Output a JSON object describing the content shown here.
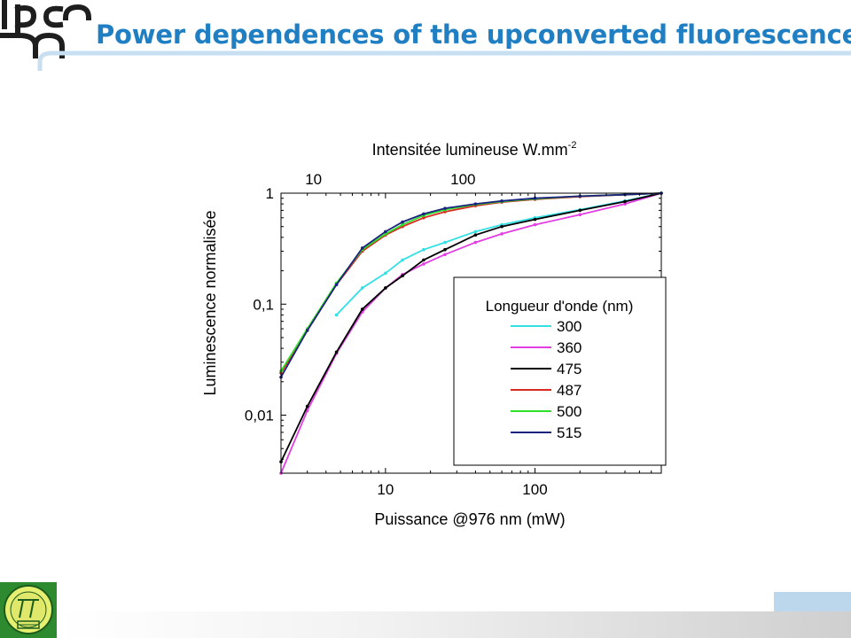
{
  "header": {
    "title": "Power dependences of the upconverted fluorescences"
  },
  "icons": {
    "logo": "lpcml-logo-icon",
    "seal": "dpc10-seal-icon"
  },
  "colors": {
    "title": "#1f7fc2",
    "accent": "#bcd7ec"
  },
  "chart_data": {
    "type": "line",
    "xscale": "log",
    "yscale": "log",
    "xlabel": "Puissance @976 nm (mW)",
    "ylabel": "Luminescence normalisée",
    "xlim": [
      2,
      700
    ],
    "ylim": [
      0.003,
      1
    ],
    "x_tick_labels": [
      "10",
      "100"
    ],
    "y_tick_labels": [
      "0,01",
      "0,1",
      "1"
    ],
    "top_axis": {
      "label": "Intensitée lumineuse W.mm",
      "label_sup": "-2",
      "tick_labels": [
        "10",
        "100"
      ]
    },
    "legend": {
      "title": "Longueur d'onde (nm)",
      "placement": "right"
    },
    "series": [
      {
        "name": "300",
        "color": "#33e0e6",
        "x": [
          4.7,
          7,
          10,
          13,
          18,
          25,
          40,
          60,
          100,
          200,
          400,
          700
        ],
        "y": [
          0.08,
          0.14,
          0.19,
          0.25,
          0.31,
          0.36,
          0.45,
          0.52,
          0.6,
          0.71,
          0.85,
          1
        ]
      },
      {
        "name": "360",
        "color": "#e23ee3",
        "x": [
          2,
          3,
          4.7,
          7,
          10,
          13,
          18,
          25,
          40,
          60,
          100,
          200,
          400,
          700
        ],
        "y": [
          0.003,
          0.011,
          0.036,
          0.085,
          0.14,
          0.185,
          0.23,
          0.28,
          0.36,
          0.43,
          0.52,
          0.64,
          0.8,
          1
        ]
      },
      {
        "name": "475",
        "color": "#000000",
        "x": [
          2,
          3,
          4.7,
          7,
          10,
          13,
          18,
          25,
          40,
          60,
          100,
          200,
          400,
          700
        ],
        "y": [
          0.0038,
          0.012,
          0.037,
          0.09,
          0.14,
          0.18,
          0.25,
          0.31,
          0.42,
          0.5,
          0.58,
          0.7,
          0.84,
          1
        ]
      },
      {
        "name": "487",
        "color": "#d82a1e",
        "x": [
          2,
          3,
          4.7,
          7,
          10,
          13,
          18,
          25,
          40,
          60,
          100,
          200,
          400,
          700
        ],
        "y": [
          0.024,
          0.058,
          0.15,
          0.3,
          0.42,
          0.5,
          0.6,
          0.68,
          0.77,
          0.83,
          0.88,
          0.93,
          0.97,
          1
        ]
      },
      {
        "name": "500",
        "color": "#2fe02a",
        "x": [
          2,
          3,
          4.7,
          7,
          10,
          13,
          18,
          25,
          40,
          60,
          100,
          200,
          400,
          700
        ],
        "y": [
          0.025,
          0.06,
          0.155,
          0.31,
          0.43,
          0.52,
          0.63,
          0.71,
          0.79,
          0.84,
          0.89,
          0.94,
          0.97,
          1
        ]
      },
      {
        "name": "515",
        "color": "#1a237e",
        "x": [
          2,
          3,
          4.7,
          7,
          10,
          13,
          18,
          25,
          40,
          60,
          100,
          200,
          400,
          700
        ],
        "y": [
          0.022,
          0.058,
          0.15,
          0.32,
          0.45,
          0.55,
          0.65,
          0.73,
          0.8,
          0.85,
          0.9,
          0.94,
          0.97,
          1
        ]
      }
    ]
  }
}
